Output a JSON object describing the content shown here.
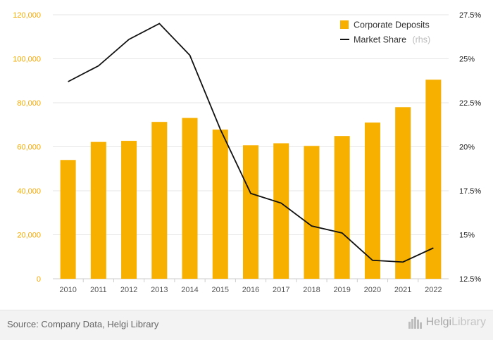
{
  "chart_data": {
    "type": "bar+line",
    "categories": [
      "2010",
      "2011",
      "2012",
      "2013",
      "2014",
      "2015",
      "2016",
      "2017",
      "2018",
      "2019",
      "2020",
      "2021",
      "2022"
    ],
    "series": [
      {
        "name": "Corporate Deposits",
        "type": "bar",
        "axis": "left",
        "values": [
          54000,
          62200,
          62700,
          71300,
          73100,
          67800,
          60700,
          61600,
          60400,
          64900,
          71000,
          78000,
          90500
        ]
      },
      {
        "name": "Market Share",
        "name_note": "(rhs)",
        "type": "line",
        "axis": "right",
        "values": [
          23.7,
          24.6,
          26.1,
          27.0,
          25.2,
          21.0,
          17.35,
          16.8,
          15.5,
          15.1,
          13.55,
          13.45,
          14.25
        ]
      }
    ],
    "left_axis": {
      "ylim": [
        0,
        120000
      ],
      "ticks": [
        0,
        20000,
        40000,
        60000,
        80000,
        100000,
        120000
      ],
      "tick_labels": [
        "0",
        "20,000",
        "40,000",
        "60,000",
        "80,000",
        "100,000",
        "120,000"
      ]
    },
    "right_axis": {
      "ylim": [
        12.5,
        27.5
      ],
      "ticks": [
        12.5,
        15,
        17.5,
        20,
        22.5,
        25,
        27.5
      ],
      "tick_labels": [
        "12.5%",
        "15%",
        "17.5%",
        "20%",
        "22.5%",
        "25%",
        "27.5%"
      ]
    },
    "grid": true,
    "legend_position": "top-right"
  },
  "colors": {
    "bar": "#f7b000",
    "line": "#111111",
    "grid": "#e6e6e6",
    "left_ticks": "#f5a800"
  },
  "footer": {
    "source": "Source: Company Data, Helgi Library",
    "logo_part1": "Helgi",
    "logo_part2": "Library",
    "logo_icon": "skyline-icon"
  }
}
